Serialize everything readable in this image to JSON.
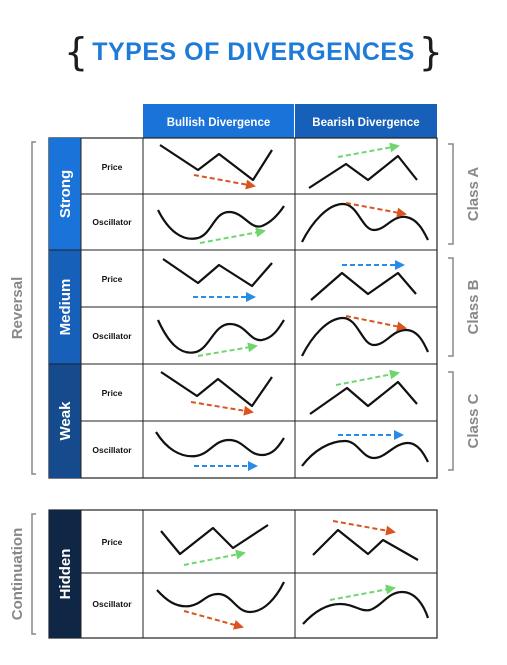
{
  "title": "TYPES OF DIVERGENCES",
  "columns": {
    "bullish": "Bullish Divergence",
    "bearish": "Bearish Divergence"
  },
  "groups": {
    "reversal": "Reversal",
    "continuation": "Continuation"
  },
  "strengths": {
    "strong": "Strong",
    "medium": "Medium",
    "weak": "Weak",
    "hidden": "Hidden"
  },
  "classes": {
    "a": "Class A",
    "b": "Class B",
    "c": "Class C"
  },
  "row_labels": {
    "price": "Price",
    "oscillator": "Oscillator"
  },
  "colors": {
    "title_blue": "#1e7bd8",
    "strong": "#1a73d9",
    "medium": "#1760b9",
    "weak": "#154b8c",
    "hidden": "#0f2745",
    "arrow_green": "#6fd66f",
    "arrow_orange": "#d9541e",
    "arrow_blue": "#2a8be6",
    "bracket_gray": "#888888"
  }
}
